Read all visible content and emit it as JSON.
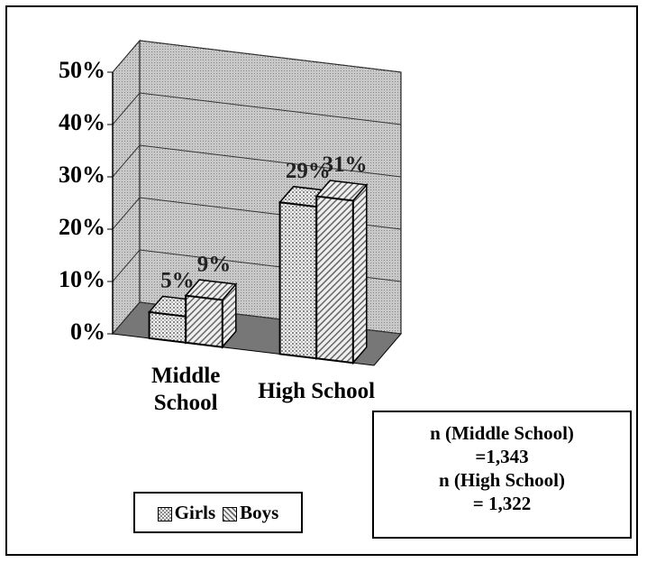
{
  "chart_data": {
    "type": "bar3d",
    "categories": [
      "Middle School",
      "High School"
    ],
    "series": [
      {
        "name": "Girls",
        "color": "#f2f2f2",
        "values": [
          5,
          29
        ],
        "value_labels": [
          "5%",
          "29%"
        ]
      },
      {
        "name": "Boys",
        "color": "#d9d9d9",
        "values": [
          9,
          31
        ],
        "value_labels": [
          "9%",
          "31%"
        ]
      }
    ],
    "ylim": [
      0,
      50
    ],
    "yticks": [
      {
        "value": 0,
        "label": "0%"
      },
      {
        "value": 10,
        "label": "10%"
      },
      {
        "value": 20,
        "label": "20%"
      },
      {
        "value": 30,
        "label": "30%"
      },
      {
        "value": 40,
        "label": "40%"
      },
      {
        "value": 50,
        "label": "50%"
      }
    ],
    "grid": true,
    "legend": "bottom-left",
    "annotations": [
      "n (Middle School)",
      "=1,343",
      "n (High School)",
      "= 1,322"
    ]
  }
}
